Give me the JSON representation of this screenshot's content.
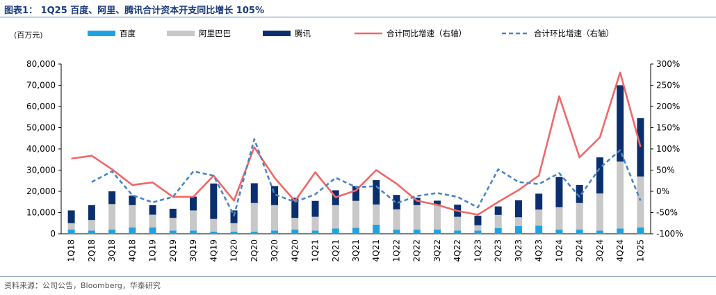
{
  "title": "图表1：  1Q25 百度、阿里、腾讯合计资本开支同比增长 105%",
  "source": "资料来源：公司公告，Bloomberg，华泰研究",
  "chart_data": {
    "type": "bar",
    "unit_label": "(百万元)",
    "categories": [
      "1Q18",
      "2Q18",
      "3Q18",
      "4Q18",
      "1Q19",
      "2Q19",
      "3Q19",
      "4Q19",
      "1Q20",
      "2Q20",
      "3Q20",
      "4Q20",
      "1Q21",
      "2Q21",
      "3Q21",
      "4Q21",
      "1Q22",
      "2Q22",
      "3Q22",
      "4Q22",
      "1Q23",
      "2Q23",
      "3Q23",
      "4Q23",
      "1Q24",
      "2Q24",
      "3Q24",
      "4Q24",
      "1Q25"
    ],
    "stacked": true,
    "series": [
      {
        "name": "百度",
        "kind": "bar",
        "axis": "left",
        "color": "#1fa3e0",
        "values": [
          2000,
          1500,
          2000,
          3000,
          3000,
          1500,
          1500,
          1000,
          1000,
          1000,
          1500,
          2000,
          1500,
          2500,
          2800,
          4300,
          2000,
          2000,
          2000,
          1500,
          1500,
          2700,
          3600,
          3800,
          2000,
          2000,
          1500,
          2500,
          3000
        ]
      },
      {
        "name": "阿里巴巴",
        "kind": "bar",
        "axis": "left",
        "color": "#c8c8c8",
        "values": [
          3000,
          5000,
          12000,
          10500,
          6000,
          6000,
          9500,
          6000,
          4000,
          13500,
          12000,
          5500,
          6500,
          11000,
          12700,
          9500,
          9500,
          11500,
          11800,
          6500,
          2500,
          6200,
          4200,
          7600,
          10500,
          12500,
          17500,
          31500,
          24000
        ]
      },
      {
        "name": "腾讯",
        "kind": "bar",
        "axis": "left",
        "color": "#0b2f6e",
        "values": [
          6000,
          7000,
          6000,
          4500,
          4500,
          4300,
          6500,
          16700,
          6000,
          9300,
          9000,
          9500,
          7500,
          7000,
          7000,
          11500,
          6800,
          3500,
          1800,
          5700,
          4500,
          4000,
          8000,
          7500,
          14300,
          8500,
          17000,
          36000,
          27500
        ]
      },
      {
        "name": "合计同比增速（右轴）",
        "kind": "line",
        "axis": "right",
        "color": "#f26667",
        "dash": false,
        "values": [
          77,
          84,
          52,
          15,
          21,
          -13,
          -13,
          37,
          -22,
          104,
          32,
          -23,
          45,
          -14,
          2,
          50,
          18,
          -22,
          -32,
          -46,
          -55,
          -25,
          3,
          37,
          224,
          80,
          127,
          280,
          105
        ]
      },
      {
        "name": "合计环比增速（右轴）",
        "kind": "line",
        "axis": "right",
        "color": "#4a86c2",
        "dash": true,
        "values": [
          null,
          22,
          47,
          -9,
          -26,
          -13,
          47,
          37,
          -57,
          123,
          -7,
          -25,
          -7,
          32,
          10,
          12,
          -28,
          -11,
          -4,
          -13,
          -38,
          52,
          22,
          17,
          43,
          -13,
          55,
          97,
          -22
        ]
      }
    ],
    "y_left": {
      "min": 0,
      "max": 80000,
      "step": 10000,
      "tick_labels": [
        "0",
        "10,000",
        "20,000",
        "30,000",
        "40,000",
        "50,000",
        "60,000",
        "70,000",
        "80,000"
      ]
    },
    "y_right": {
      "min": -100,
      "max": 300,
      "step": 50,
      "tick_labels": [
        "-100%",
        "-50%",
        "0%",
        "50%",
        "100%",
        "150%",
        "200%",
        "250%",
        "300%"
      ]
    },
    "grid": false,
    "legend_position": "top"
  }
}
